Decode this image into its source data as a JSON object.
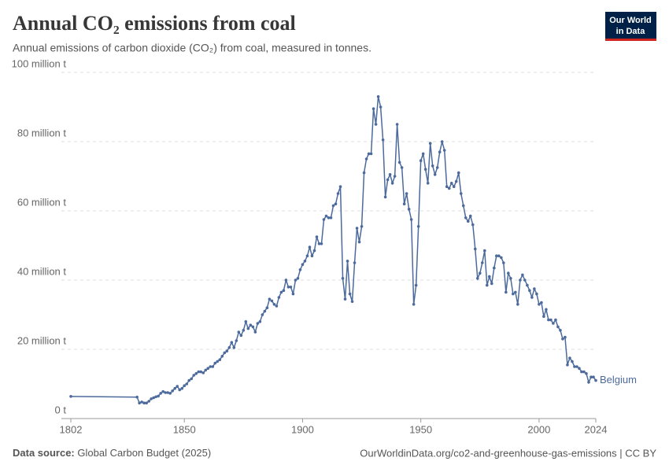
{
  "chart_data": {
    "type": "line",
    "title": "Annual CO₂ emissions from coal",
    "subtitle": "Annual emissions of carbon dioxide (CO₂) from coal, measured in tonnes.",
    "logo": [
      "Our World",
      "in Data"
    ],
    "source_label": "Data source:",
    "source": "Global Carbon Budget (2025)",
    "footer_right": "OurWorldinData.org/co2-and-greenhouse-gas-emissions | CC BY",
    "grid": true,
    "xlim": [
      1802,
      2024
    ],
    "xticks": [
      1802,
      1850,
      1900,
      1950,
      2000,
      2024
    ],
    "ylim": [
      0,
      100000000
    ],
    "yticks": [
      {
        "value": 0,
        "label": "0 t"
      },
      {
        "value": 20000000,
        "label": "20 million t"
      },
      {
        "value": 40000000,
        "label": "40 million t"
      },
      {
        "value": 60000000,
        "label": "60 million t"
      },
      {
        "value": 80000000,
        "label": "80 million t"
      },
      {
        "value": 100000000,
        "label": "100 million t"
      }
    ],
    "x": [
      1802,
      1830,
      1831,
      1832,
      1833,
      1834,
      1835,
      1836,
      1837,
      1838,
      1839,
      1840,
      1841,
      1842,
      1843,
      1844,
      1845,
      1846,
      1847,
      1848,
      1849,
      1850,
      1851,
      1852,
      1853,
      1854,
      1855,
      1856,
      1857,
      1858,
      1859,
      1860,
      1861,
      1862,
      1863,
      1864,
      1865,
      1866,
      1867,
      1868,
      1869,
      1870,
      1871,
      1872,
      1873,
      1874,
      1875,
      1876,
      1877,
      1878,
      1879,
      1880,
      1881,
      1882,
      1883,
      1884,
      1885,
      1886,
      1887,
      1888,
      1889,
      1890,
      1891,
      1892,
      1893,
      1894,
      1895,
      1896,
      1897,
      1898,
      1899,
      1900,
      1901,
      1902,
      1903,
      1904,
      1905,
      1906,
      1907,
      1908,
      1909,
      1910,
      1911,
      1912,
      1913,
      1914,
      1915,
      1916,
      1917,
      1918,
      1919,
      1920,
      1921,
      1922,
      1923,
      1924,
      1925,
      1926,
      1927,
      1928,
      1929,
      1930,
      1931,
      1932,
      1933,
      1934,
      1935,
      1936,
      1937,
      1938,
      1939,
      1940,
      1941,
      1942,
      1943,
      1944,
      1945,
      1946,
      1947,
      1948,
      1949,
      1950,
      1951,
      1952,
      1953,
      1954,
      1955,
      1956,
      1957,
      1958,
      1959,
      1960,
      1961,
      1962,
      1963,
      1964,
      1965,
      1966,
      1967,
      1968,
      1969,
      1970,
      1971,
      1972,
      1973,
      1974,
      1975,
      1976,
      1977,
      1978,
      1979,
      1980,
      1981,
      1982,
      1983,
      1984,
      1985,
      1986,
      1987,
      1988,
      1989,
      1990,
      1991,
      1992,
      1993,
      1994,
      1995,
      1996,
      1997,
      1998,
      1999,
      2000,
      2001,
      2002,
      2003,
      2004,
      2005,
      2006,
      2007,
      2008,
      2009,
      2010,
      2011,
      2012,
      2013,
      2014,
      2015,
      2016,
      2017,
      2018,
      2019,
      2020,
      2021,
      2022,
      2023,
      2024
    ],
    "series": [
      {
        "name": "Belgium",
        "color": "#4c6a9c",
        "values": [
          6400000,
          6200000,
          4500000,
          4800000,
          4500000,
          4500000,
          5000000,
          5700000,
          6000000,
          6300000,
          6500000,
          7300000,
          7800000,
          7500000,
          7500000,
          7300000,
          8000000,
          8700000,
          9300000,
          8300000,
          8700000,
          9500000,
          10000000,
          11000000,
          11500000,
          12500000,
          13000000,
          13500000,
          13500000,
          13200000,
          14000000,
          14500000,
          15000000,
          15000000,
          16000000,
          16500000,
          17000000,
          18000000,
          19000000,
          19500000,
          20500000,
          22000000,
          20500000,
          22500000,
          25000000,
          24000000,
          25500000,
          28000000,
          26000000,
          27000000,
          26500000,
          25000000,
          27500000,
          28000000,
          30000000,
          31000000,
          32000000,
          34500000,
          34000000,
          33000000,
          32500000,
          35000000,
          36500000,
          37000000,
          40000000,
          38000000,
          38000000,
          36000000,
          40000000,
          40500000,
          43000000,
          44500000,
          45500000,
          47000000,
          49500000,
          47000000,
          48500000,
          52500000,
          50500000,
          50500000,
          57500000,
          58500000,
          58000000,
          58000000,
          61500000,
          62000000,
          65000000,
          67000000,
          40500000,
          34500000,
          45500000,
          36000000,
          33800000,
          45000000,
          55000000,
          51000000,
          55500000,
          71000000,
          75000000,
          76500000,
          76500000,
          89500000,
          85000000,
          93000000,
          90000000,
          80500000,
          64000000,
          69000000,
          70500000,
          68000000,
          70000000,
          85000000,
          74000000,
          72500000,
          62000000,
          65000000,
          60500000,
          57500000,
          33000000,
          38500000,
          55500000,
          74500000,
          76500000,
          72000000,
          68000000,
          79500000,
          73000000,
          70500000,
          72500000,
          77000000,
          80000000,
          77500000,
          67000000,
          66500000,
          68000000,
          67000000,
          68500000,
          71000000,
          65000000,
          61500000,
          58000000,
          57000000,
          58500000,
          56000000,
          49000000,
          40500000,
          42000000,
          45000000,
          48500000,
          38500000,
          41000000,
          39000000,
          43500000,
          47000000,
          47000000,
          46500000,
          45000000,
          36500000,
          42000000,
          40500000,
          36000000,
          36500000,
          33000000,
          40000000,
          41500000,
          40000000,
          38500000,
          37000000,
          35000000,
          37500000,
          36000000,
          33000000,
          33500000,
          29500000,
          31500000,
          28500000,
          28500000,
          27500000,
          28500000,
          26500000,
          25500000,
          23000000,
          23500000,
          15500000,
          17500000,
          16500000,
          15000000,
          15000000,
          14500000,
          13500000,
          13500000,
          13000000,
          10500000,
          12000000,
          12000000,
          11000000
        ]
      }
    ]
  }
}
